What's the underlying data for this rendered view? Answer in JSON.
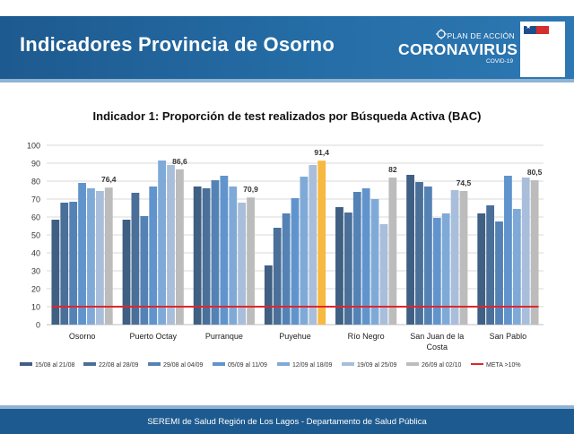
{
  "slide": {
    "title": "Indicadores Provincia de Osorno",
    "plan_label": "PLAN DE ACCIÓN",
    "coronavirus_label": "CORONAVIRUS",
    "covid_label": "COVID-19",
    "footer": "SEREMI de Salud Región de Los Lagos - Departamento de Salud Pública"
  },
  "colors": {
    "header": "#1d5a8f",
    "meta_line": "#e0262a",
    "highlight_bar": "#f7b941",
    "series": [
      "#3f5f83",
      "#4a6f99",
      "#5582b5",
      "#6194cc",
      "#7faad8",
      "#a8bedb",
      "#bcbcbc"
    ]
  },
  "chart_data": {
    "type": "bar",
    "title": "Indicador 1: Proporción de test realizados por Búsqueda Activa (BAC)",
    "xlabel": "",
    "ylabel": "",
    "ylim": [
      0,
      100
    ],
    "yticks": [
      0,
      10,
      20,
      30,
      40,
      50,
      60,
      70,
      80,
      90,
      100
    ],
    "grid": true,
    "legend_position": "bottom",
    "categories": [
      "Osorno",
      "Puerto Octay",
      "Purranque",
      "Puyehue",
      "Río Negro",
      "San Juan de la Costa",
      "San Pablo"
    ],
    "series": [
      {
        "name": "15/08 al 21/08",
        "values": [
          58.5,
          58.5,
          77,
          33,
          65.5,
          83.5,
          62
        ]
      },
      {
        "name": "22/08 al 28/09",
        "values": [
          68,
          73.5,
          76,
          54,
          62.5,
          79.5,
          66.5
        ]
      },
      {
        "name": "29/08 al 04/09",
        "values": [
          68.5,
          60.5,
          80.5,
          62,
          74,
          77,
          57.5
        ]
      },
      {
        "name": "05/09 al 11/09",
        "values": [
          79,
          77,
          83,
          70.5,
          76,
          59.5,
          83
        ]
      },
      {
        "name": "12/09 al 18/09",
        "values": [
          76,
          91.5,
          77,
          82.5,
          70,
          62,
          64.5
        ]
      },
      {
        "name": "19/09 al 25/09",
        "values": [
          74.5,
          89,
          68,
          89,
          56,
          75,
          82
        ]
      },
      {
        "name": "26/09 al 02/10",
        "values": [
          76.4,
          86.6,
          70.9,
          91.4,
          82,
          74.5,
          80.5
        ]
      }
    ],
    "last_value_labels": [
      "76,4",
      "86,6",
      "70,9",
      "91,4",
      "82",
      "74,5",
      "80,5"
    ],
    "highlight": {
      "category": "Puyehue",
      "series": "26/09 al 02/10"
    },
    "meta": {
      "name": "META >10%",
      "value": 10
    }
  }
}
